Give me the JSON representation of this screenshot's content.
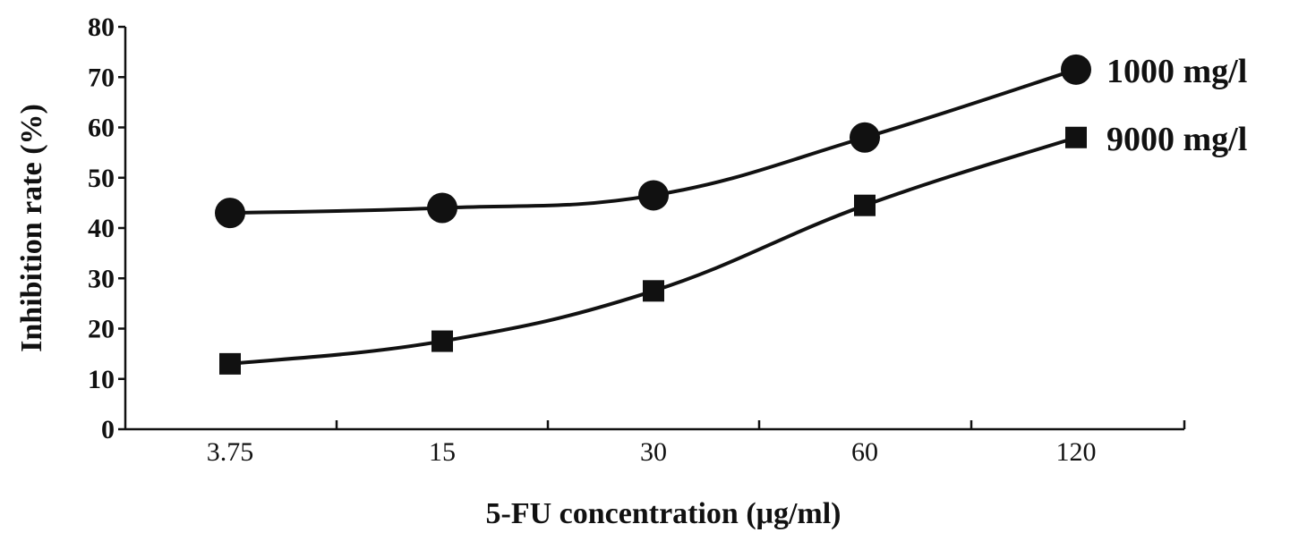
{
  "chart_data": {
    "type": "line",
    "categories": [
      "3.75",
      "15",
      "30",
      "60",
      "120"
    ],
    "xlabel": "5-FU concentration (μg/ml)",
    "ylabel": "Inhibition rate (%)",
    "ylim": [
      0,
      80
    ],
    "yticks": [
      "0",
      "10",
      "20",
      "30",
      "40",
      "50",
      "60",
      "70",
      "80"
    ],
    "grid": false,
    "series": [
      {
        "name": "1000 mg/l",
        "marker": "circle",
        "values": [
          43,
          44,
          46.5,
          58,
          71.5
        ]
      },
      {
        "name": "9000 mg/l",
        "marker": "square",
        "values": [
          13,
          17.5,
          27.5,
          44.5,
          58
        ]
      }
    ]
  }
}
